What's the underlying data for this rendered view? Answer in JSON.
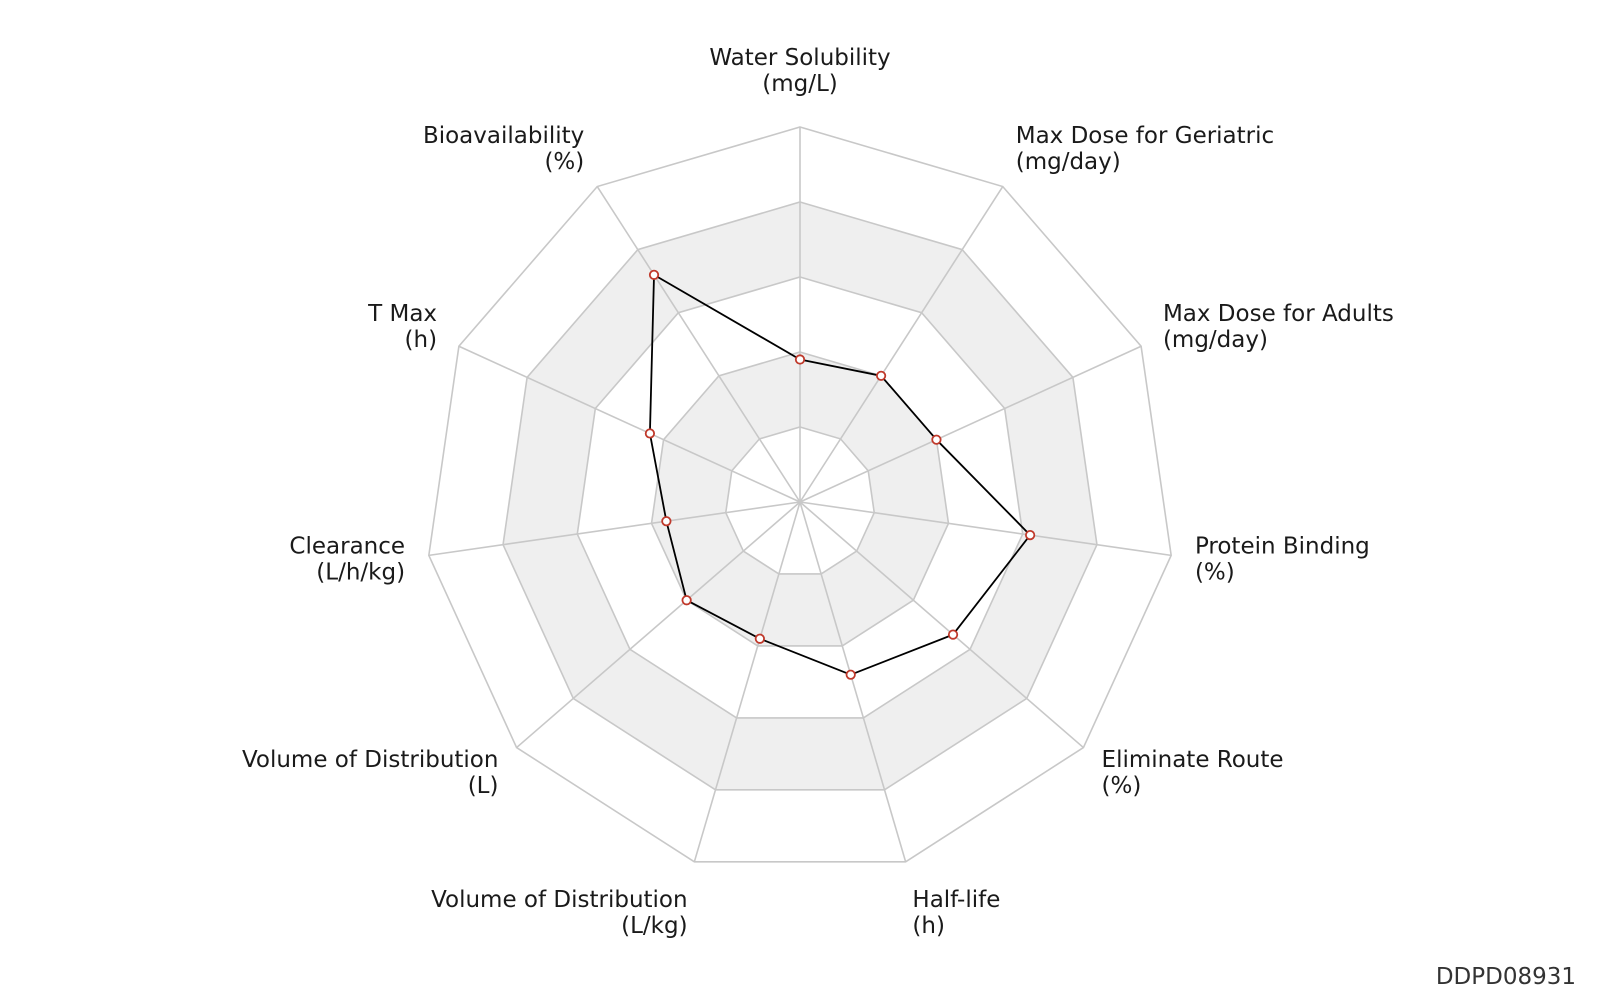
{
  "chart_data": {
    "type": "radar",
    "title": "",
    "rmax": 5,
    "rings": 5,
    "axes": [
      {
        "name": "Water Solubility",
        "unit": "(mg/L)"
      },
      {
        "name": "Max Dose for Geriatric",
        "unit": "(mg/day)"
      },
      {
        "name": "Max Dose for Adults",
        "unit": "(mg/day)"
      },
      {
        "name": "Protein Binding",
        "unit": "(%)"
      },
      {
        "name": "Eliminate Route",
        "unit": "(%)"
      },
      {
        "name": "Half-life",
        "unit": "(h)"
      },
      {
        "name": "Volume of Distribution",
        "unit": "(L/kg)"
      },
      {
        "name": "Volume of Distribution",
        "unit": "(L)"
      },
      {
        "name": "Clearance",
        "unit": "(L/h/kg)"
      },
      {
        "name": "T Max",
        "unit": "(h)"
      },
      {
        "name": "Bioavailability",
        "unit": "(%)"
      }
    ],
    "series": [
      {
        "values": [
          1.9,
          2.0,
          2.0,
          3.1,
          2.7,
          2.4,
          1.9,
          2.0,
          1.8,
          2.2,
          3.6
        ]
      }
    ],
    "colors": {
      "line": "#000000",
      "marker": "#c0392b",
      "grid": "#c8c8c8",
      "band": "#efefef"
    }
  },
  "watermark": "DDPD08931"
}
